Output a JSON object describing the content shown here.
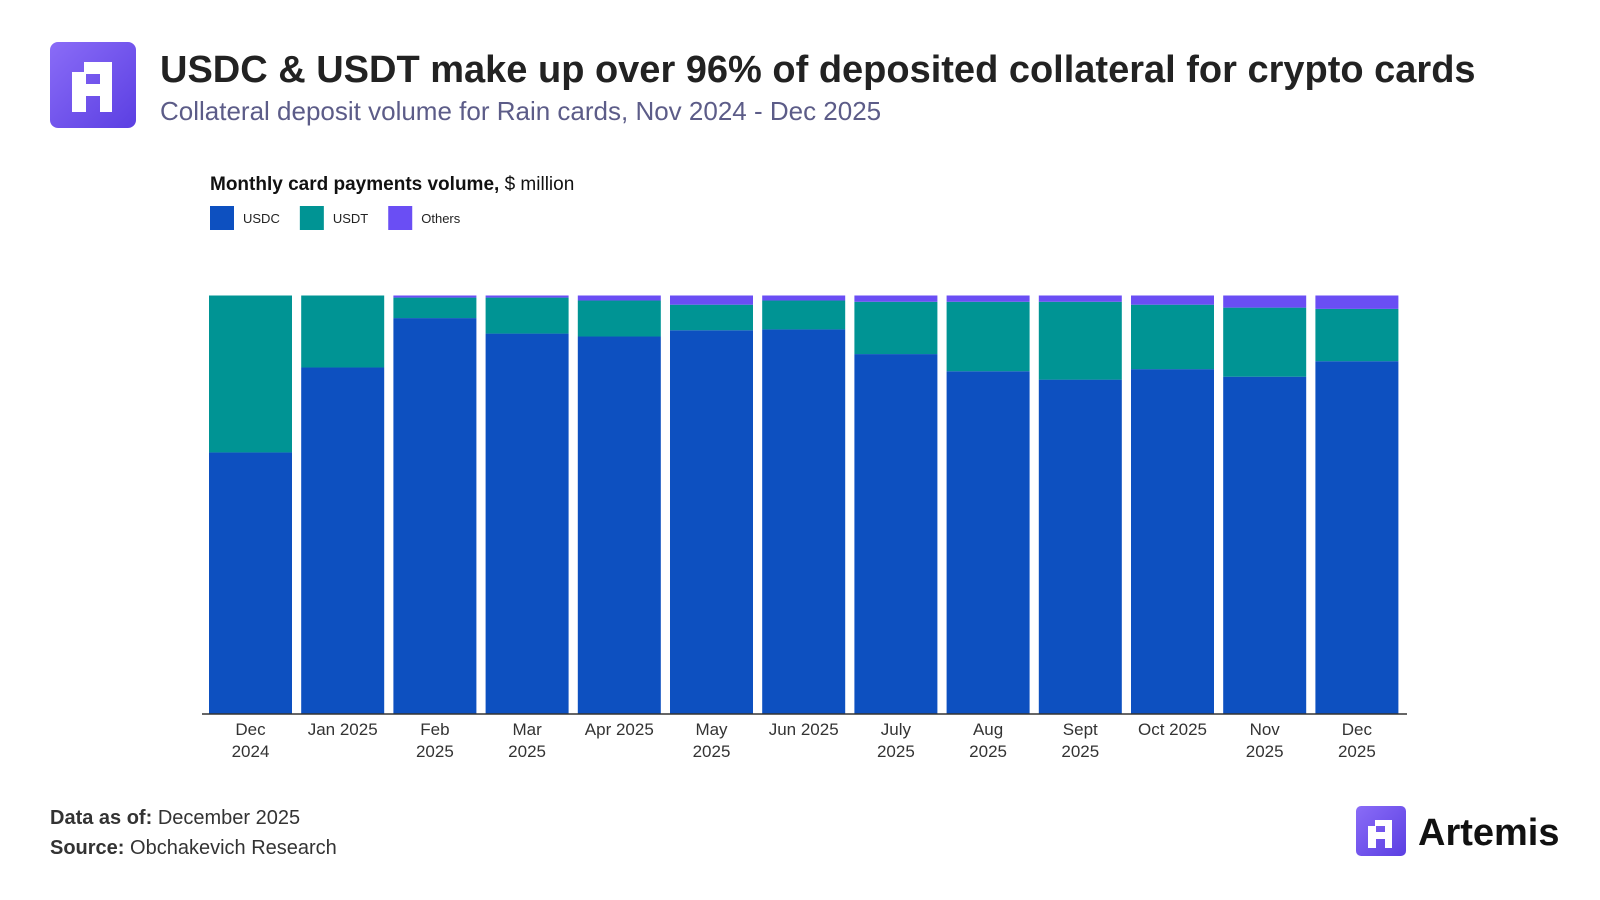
{
  "header": {
    "title": "USDC & USDT make up over 96% of deposited collateral for crypto cards",
    "subtitle": "Collateral deposit volume for Rain cards, Nov 2024 - Dec 2025"
  },
  "chart_data": {
    "type": "bar",
    "stacked": true,
    "title": "Monthly card payments volume,",
    "title_unit": "$ million",
    "categories": [
      "Dec 2024",
      "Jan 2025",
      "Feb 2025",
      "Mar 2025",
      "Apr 2025",
      "May 2025",
      "Jun 2025",
      "July 2025",
      "Aug 2025",
      "Sept 2025",
      "Oct 2025",
      "Nov 2025",
      "Dec 2025"
    ],
    "series": [
      {
        "name": "USDC",
        "color": "#0d50c0",
        "values": [
          62.5,
          82.8,
          94.6,
          90.9,
          90.2,
          91.7,
          91.9,
          86.0,
          81.9,
          79.9,
          82.4,
          80.6,
          84.3
        ]
      },
      {
        "name": "USDT",
        "color": "#009494",
        "values": [
          37.5,
          17.2,
          4.9,
          8.6,
          8.6,
          6.1,
          6.9,
          12.5,
          16.6,
          18.6,
          15.4,
          16.5,
          12.5
        ]
      },
      {
        "name": "Others",
        "color": "#6a4ef4",
        "values": [
          0,
          0,
          0.5,
          0.5,
          1.2,
          2.2,
          1.2,
          1.5,
          1.5,
          1.5,
          2.2,
          2.9,
          3.2
        ]
      }
    ],
    "ylim": [
      0,
      100
    ],
    "legend": "top-left"
  },
  "footer": {
    "data_as_of_label": "Data as of:",
    "data_as_of": "December 2025",
    "source_label": "Source:",
    "source": "Obchakevich Research"
  },
  "brand": "Artemis"
}
